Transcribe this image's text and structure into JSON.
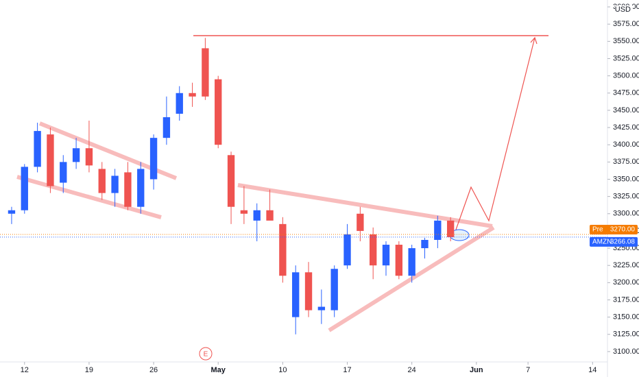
{
  "chart_data": {
    "type": "candlestick",
    "currency": "USD",
    "earnings_marker": "E",
    "up_color": "#2962ff",
    "down_color": "#ef5350",
    "x": [
      -1,
      0,
      1,
      2,
      3,
      4,
      5,
      6,
      7,
      8,
      9,
      10,
      11,
      12,
      13,
      14,
      15,
      16,
      17,
      18,
      19,
      20,
      21,
      22,
      23,
      24,
      25,
      26,
      27,
      28,
      29,
      30,
      31,
      32,
      33
    ],
    "open": [
      3300,
      3305,
      3368,
      3415,
      3345,
      3375,
      3395,
      3365,
      3330,
      3360,
      3310,
      3350,
      3410,
      3445,
      3475,
      3540,
      3495,
      3385,
      3305,
      3290,
      3305,
      3285,
      3150,
      3215,
      3160,
      3160,
      3225,
      3300,
      3270,
      3225,
      3255,
      3210,
      3250,
      3262,
      3290
    ],
    "high": [
      3310,
      3372,
      3432,
      3425,
      3385,
      3410,
      3435,
      3375,
      3365,
      3375,
      3375,
      3415,
      3470,
      3485,
      3490,
      3555,
      3500,
      3390,
      3340,
      3315,
      3335,
      3295,
      3225,
      3230,
      3190,
      3225,
      3285,
      3310,
      3280,
      3260,
      3260,
      3255,
      3265,
      3297,
      3295
    ],
    "low": [
      3285,
      3300,
      3360,
      3330,
      3330,
      3365,
      3360,
      3320,
      3310,
      3305,
      3300,
      3335,
      3400,
      3435,
      3455,
      3465,
      3395,
      3285,
      3285,
      3260,
      3295,
      3200,
      3125,
      3150,
      3140,
      3150,
      3220,
      3260,
      3205,
      3210,
      3205,
      3200,
      3235,
      3250,
      3260
    ],
    "close": [
      3305,
      3368,
      3420,
      3340,
      3375,
      3395,
      3370,
      3330,
      3355,
      3310,
      3365,
      3410,
      3440,
      3475,
      3470,
      3470,
      3400,
      3310,
      3300,
      3305,
      3290,
      3210,
      3215,
      3160,
      3165,
      3220,
      3270,
      3275,
      3225,
      3255,
      3210,
      3250,
      3262,
      3290,
      3266
    ],
    "xlim": [
      -1.9,
      45.1
    ],
    "xticks": [
      {
        "value": 0,
        "label": "12"
      },
      {
        "value": 5,
        "label": "19"
      },
      {
        "value": 10,
        "label": "26"
      },
      {
        "value": 15,
        "label": "May"
      },
      {
        "value": 20,
        "label": "10"
      },
      {
        "value": 25,
        "label": "17"
      },
      {
        "value": 30,
        "label": "24"
      },
      {
        "value": 35,
        "label": "Jun"
      },
      {
        "value": 39,
        "label": "7"
      },
      {
        "value": 44,
        "label": "14"
      }
    ],
    "ylim": [
      3085,
      3610
    ],
    "yticks": [
      {
        "value": 3100,
        "label": "3100.00"
      },
      {
        "value": 3125,
        "label": "3125.00"
      },
      {
        "value": 3150,
        "label": "3150.00"
      },
      {
        "value": 3175,
        "label": "3175.00"
      },
      {
        "value": 3200,
        "label": "3200.00"
      },
      {
        "value": 3225,
        "label": "3225.00"
      },
      {
        "value": 3250,
        "label": "3250.00"
      },
      {
        "value": 3275,
        "label": "3275.00"
      },
      {
        "value": 3300,
        "label": "3300.00"
      },
      {
        "value": 3325,
        "label": "3325.00"
      },
      {
        "value": 3350,
        "label": "3350.00"
      },
      {
        "value": 3375,
        "label": "3375.00"
      },
      {
        "value": 3400,
        "label": "3400.00"
      },
      {
        "value": 3425,
        "label": "3425.00"
      },
      {
        "value": 3450,
        "label": "3450.00"
      },
      {
        "value": 3475,
        "label": "3475.00"
      },
      {
        "value": 3500,
        "label": "3500.00"
      },
      {
        "value": 3525,
        "label": "3525.00"
      },
      {
        "value": 3550,
        "label": "3550.00"
      },
      {
        "value": 3575,
        "label": "3575.00"
      },
      {
        "value": 3600,
        "label": "3600.00"
      }
    ],
    "price_tags": [
      {
        "name": "Pre",
        "value": 3270,
        "label": "3270.00",
        "color": "#f57c00"
      },
      {
        "name": "AMZN",
        "value": 3266.08,
        "label": "3266.08",
        "color": "#2962ff"
      }
    ]
  }
}
